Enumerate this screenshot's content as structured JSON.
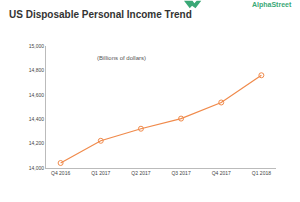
{
  "brand": "AlphaStreet",
  "chart_data": {
    "type": "line",
    "title": "US Disposable Personal Income Trend",
    "annotations": [
      "(Billions of dollars)"
    ],
    "categories": [
      "Q4 2016",
      "Q1 2017",
      "Q2 2017",
      "Q3 2017",
      "Q4 2017",
      "Q1 2018"
    ],
    "values": [
      14041,
      14223,
      14322,
      14405,
      14537,
      14760
    ],
    "color": "#f08a4b",
    "marker": "open_circle",
    "line_style": "solid",
    "ylim": [
      14000,
      15000
    ],
    "yticks": [
      {
        "value": 14000,
        "label": "14,000"
      },
      {
        "value": 14200,
        "label": "14,200"
      },
      {
        "value": 14400,
        "label": "14,400"
      },
      {
        "value": 14600,
        "label": "14,600"
      },
      {
        "value": 14800,
        "label": "14,800"
      },
      {
        "value": 15000,
        "label": "15,000"
      }
    ],
    "grid": false
  }
}
